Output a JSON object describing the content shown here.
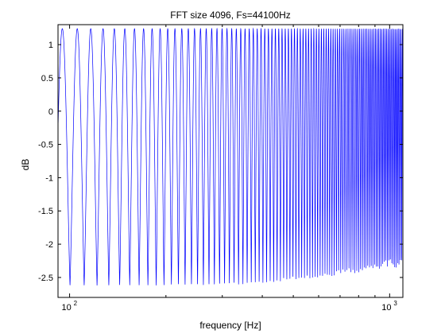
{
  "chart_data": {
    "type": "line",
    "title": "FFT size 4096, Fs=44100Hz",
    "xlabel": "frequency [Hz]",
    "ylabel": "dB",
    "x_scale": "log",
    "xlim": [
      92,
      1100
    ],
    "ylim": [
      -2.8,
      1.3
    ],
    "grid": false,
    "x_ticks": [
      {
        "value": 100,
        "label": "10",
        "exponent": "2"
      },
      {
        "value": 1000,
        "label": "10",
        "exponent": "3"
      }
    ],
    "y_ticks": [
      1,
      0.5,
      0,
      -0.5,
      -1,
      -1.5,
      -2,
      -2.5
    ],
    "series": [
      {
        "color": "#0000ff",
        "ripple": {
          "peak_db": 1.24,
          "trough_db": -2.62,
          "trough_db_high_freq": -2.35,
          "first_peak_hz": 94.9,
          "bin_spacing_hz": 10.77,
          "x_end_hz": 1100
        }
      }
    ]
  }
}
